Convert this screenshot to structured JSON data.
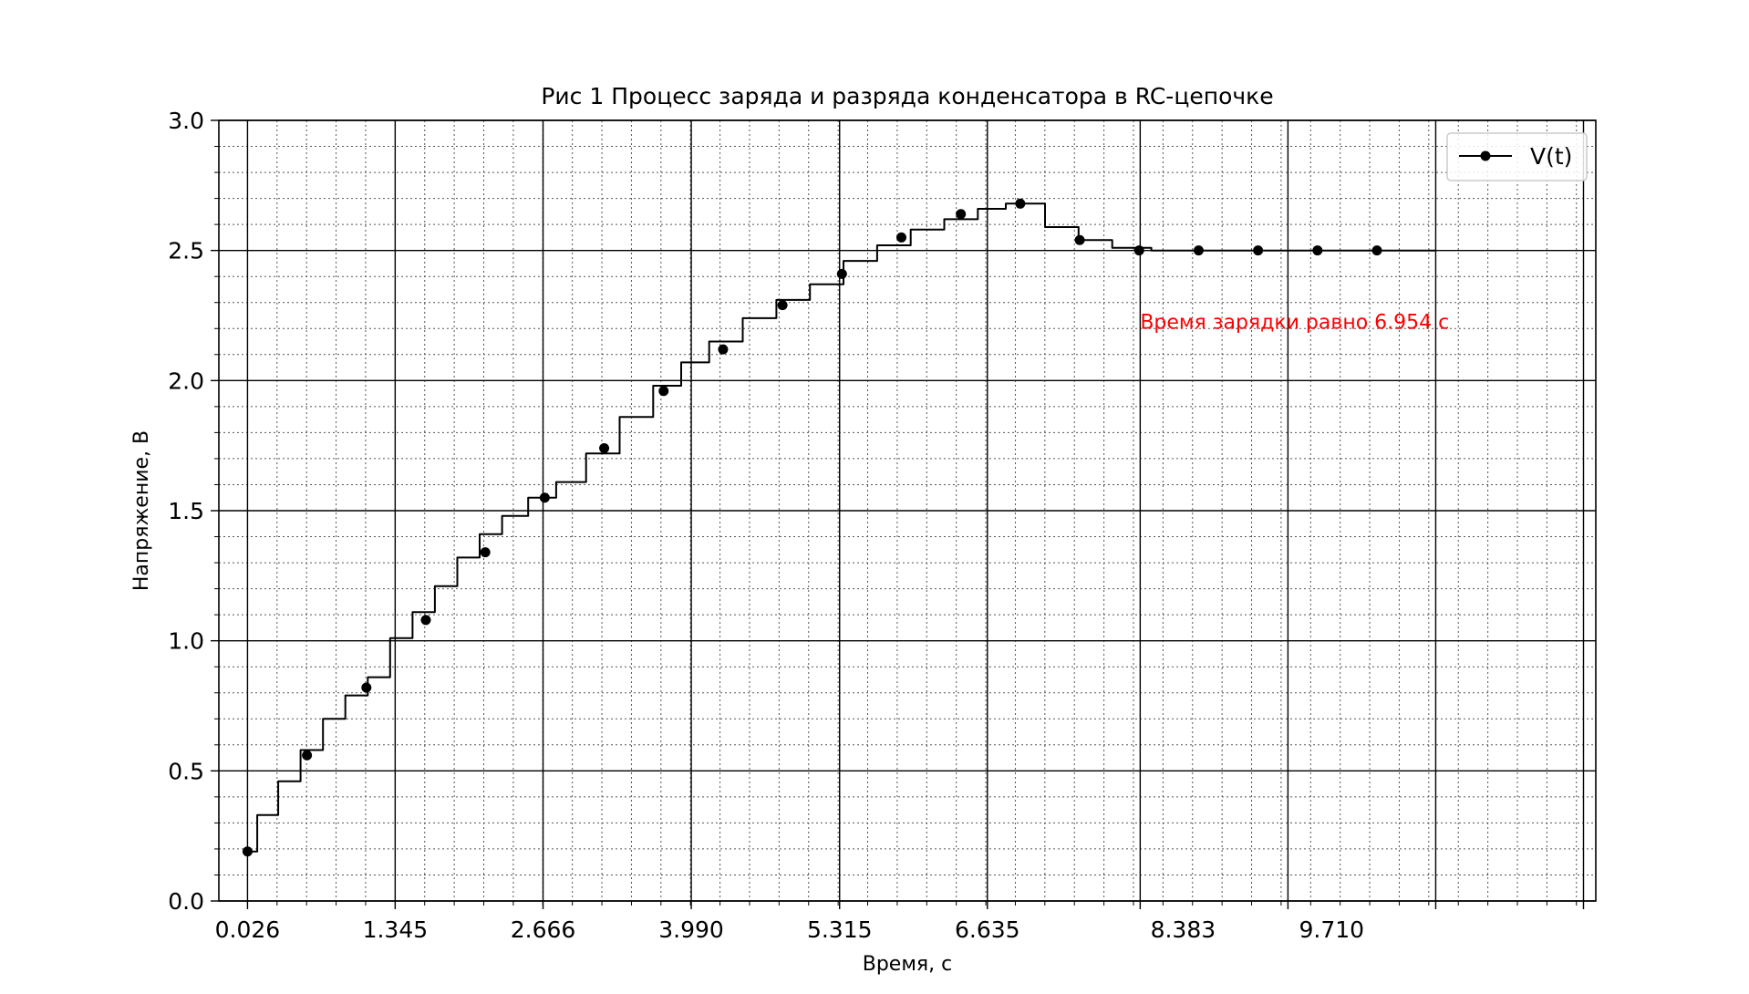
{
  "chart_data": {
    "type": "line",
    "title": "Рис 1 Процесс заряда и разряда конденсатора в RC-цепочке",
    "xlabel": "Время, с",
    "ylabel": "Напряжение, В",
    "xlim": [
      -0.23,
      12.07
    ],
    "ylim": [
      0,
      3
    ],
    "x_ticks": [
      0.026,
      1.345,
      2.666,
      3.99,
      5.315,
      6.635,
      8.383,
      9.71
    ],
    "x_tick_labels": [
      "0.026",
      "1.345",
      "2.666",
      "3.990",
      "5.315",
      "6.635",
      "8.383",
      "9.710"
    ],
    "x_major_grid": [
      0.026,
      1.345,
      2.666,
      3.99,
      5.315,
      6.635,
      8.0,
      9.32,
      10.64,
      11.96
    ],
    "y_ticks": [
      0.0,
      0.5,
      1.0,
      1.5,
      2.0,
      2.5,
      3.0
    ],
    "y_tick_labels": [
      "0.0",
      "0.5",
      "1.0",
      "1.5",
      "2.0",
      "2.5",
      "3.0"
    ],
    "grid": true,
    "legend": {
      "position": "top-right",
      "entries": [
        "V(t)"
      ]
    },
    "annotation": {
      "text": "Время зарядки равно 6.954 с",
      "x": 8.0,
      "y": 2.2,
      "color": "#ff0000"
    },
    "series": [
      {
        "name": "V(t)",
        "color": "#000000",
        "x": [
          0.026,
          0.2,
          0.4,
          0.6,
          0.8,
          1.0,
          1.2,
          1.4,
          1.6,
          1.8,
          2.0,
          2.2,
          2.4,
          2.666,
          2.9,
          3.2,
          3.5,
          3.8,
          4.0,
          4.3,
          4.6,
          4.9,
          5.2,
          5.5,
          5.8,
          6.1,
          6.4,
          6.7,
          6.9,
          7.0,
          7.3,
          7.6,
          7.9,
          8.3,
          9.0,
          10.0,
          10.64
        ],
        "y": [
          0.19,
          0.33,
          0.46,
          0.58,
          0.7,
          0.79,
          0.86,
          1.01,
          1.11,
          1.21,
          1.32,
          1.41,
          1.48,
          1.55,
          1.61,
          1.72,
          1.86,
          1.98,
          2.07,
          2.15,
          2.24,
          2.31,
          2.37,
          2.46,
          2.52,
          2.58,
          2.62,
          2.66,
          2.68,
          2.68,
          2.59,
          2.54,
          2.51,
          2.5,
          2.5,
          2.5,
          2.5
        ],
        "marker_x": [
          0.026,
          0.557,
          1.088,
          1.619,
          2.15,
          2.681,
          3.212,
          3.743,
          4.274,
          4.805,
          5.336,
          5.867,
          6.398,
          6.929,
          7.46,
          7.991,
          8.522,
          9.053,
          9.584,
          10.115
        ],
        "marker_y": [
          0.19,
          0.56,
          0.82,
          1.08,
          1.34,
          1.55,
          1.74,
          1.96,
          2.12,
          2.29,
          2.41,
          2.55,
          2.64,
          2.68,
          2.54,
          2.5,
          2.5,
          2.5,
          2.5,
          2.5
        ]
      }
    ]
  }
}
